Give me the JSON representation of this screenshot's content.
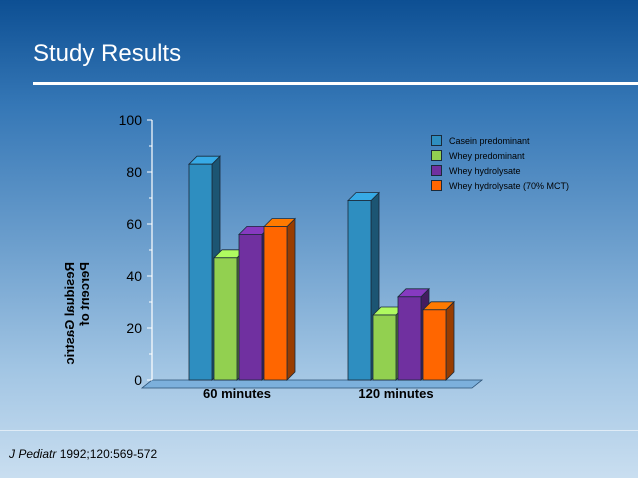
{
  "slide": {
    "title": "Study Results",
    "citation_journal": "J Pediatr",
    "citation_rest": " 1992;120:569-572"
  },
  "chart_data": {
    "type": "bar",
    "title": "",
    "xlabel": "",
    "ylabel_lines": [
      "Percent of",
      "Residual Gastric"
    ],
    "categories": [
      "60 minutes",
      "120 minutes"
    ],
    "ylim": [
      0,
      100
    ],
    "yticks": [
      "0",
      "20",
      "40",
      "60",
      "80",
      "100"
    ],
    "grid": false,
    "three_d": true,
    "legend_position": "top-right",
    "series": [
      {
        "name": "Casein predominant",
        "color": "#2e8ec0",
        "values": [
          83,
          69
        ]
      },
      {
        "name": "Whey predominant",
        "color": "#92d050",
        "values": [
          47,
          25
        ]
      },
      {
        "name": "Whey hydrolysate",
        "color": "#7030a0",
        "values": [
          56,
          32
        ]
      },
      {
        "name": "Whey hydrolysate (70% MCT)",
        "color": "#ff6600",
        "values": [
          59,
          27
        ]
      }
    ]
  }
}
